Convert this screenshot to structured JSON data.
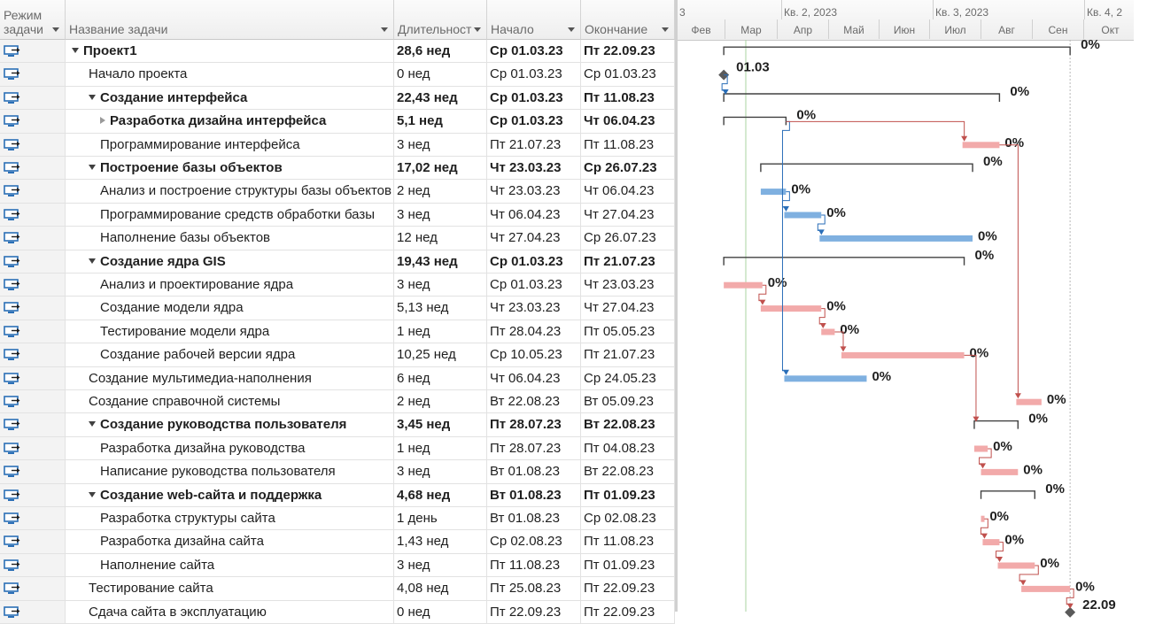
{
  "columns": {
    "mode_line1": "Режим",
    "mode_line2": "задачи",
    "name": "Название задачи",
    "duration": "Длительност",
    "start": "Начало",
    "finish": "Окончание"
  },
  "timescale": {
    "top_tiers": [
      "3",
      "Кв. 2, 2023",
      "Кв. 3, 2023",
      "Кв. 4, 2"
    ],
    "months": [
      "Фев",
      "Мар",
      "Апр",
      "Май",
      "Июн",
      "Июл",
      "Авг",
      "Сен",
      "Окт"
    ]
  },
  "tasks": [
    {
      "name": "Проект1",
      "duration": "28,6 нед",
      "start": "Ср 01.03.23",
      "finish": "Пт 22.09.23",
      "level": 0,
      "summary": true,
      "percent": "0%"
    },
    {
      "name": "Начало проекта",
      "duration": "0 нед",
      "start": "Ср 01.03.23",
      "finish": "Ср 01.03.23",
      "level": 1,
      "summary": false,
      "milestone": true,
      "milestone_label": "01.03"
    },
    {
      "name": "Создание интерфейса",
      "duration": "22,43 нед",
      "start": "Ср 01.03.23",
      "finish": "Пт 11.08.23",
      "level": 1,
      "summary": true,
      "percent": "0%"
    },
    {
      "name": "Разработка дизайна интерфейса",
      "duration": "5,1 нед",
      "start": "Ср 01.03.23",
      "finish": "Чт 06.04.23",
      "level": 2,
      "summary": true,
      "collapsed": true,
      "percent": "0%"
    },
    {
      "name": "Программирование интерфейса",
      "duration": "3 нед",
      "start": "Пт 21.07.23",
      "finish": "Пт 11.08.23",
      "level": 2,
      "summary": false,
      "percent": "0%"
    },
    {
      "name": "Построение базы объектов",
      "duration": "17,02 нед",
      "start": "Чт 23.03.23",
      "finish": "Ср 26.07.23",
      "level": 1,
      "summary": true,
      "percent": "0%"
    },
    {
      "name": "Анализ и построение структуры базы объектов",
      "duration": "2 нед",
      "start": "Чт 23.03.23",
      "finish": "Чт 06.04.23",
      "level": 2,
      "summary": false,
      "percent": "0%"
    },
    {
      "name": "Программирование средств обработки базы",
      "duration": "3 нед",
      "start": "Чт 06.04.23",
      "finish": "Чт 27.04.23",
      "level": 2,
      "summary": false,
      "percent": "0%"
    },
    {
      "name": "Наполнение базы объектов",
      "duration": "12 нед",
      "start": "Чт 27.04.23",
      "finish": "Ср 26.07.23",
      "level": 2,
      "summary": false,
      "percent": "0%"
    },
    {
      "name": "Создание ядра GIS",
      "duration": "19,43 нед",
      "start": "Ср 01.03.23",
      "finish": "Пт 21.07.23",
      "level": 1,
      "summary": true,
      "percent": "0%"
    },
    {
      "name": "Анализ и проектирование ядра",
      "duration": "3 нед",
      "start": "Ср 01.03.23",
      "finish": "Чт 23.03.23",
      "level": 2,
      "summary": false,
      "percent": "0%"
    },
    {
      "name": "Создание модели ядра",
      "duration": "5,13 нед",
      "start": "Чт 23.03.23",
      "finish": "Чт 27.04.23",
      "level": 2,
      "summary": false,
      "percent": "0%"
    },
    {
      "name": "Тестирование модели ядра",
      "duration": "1 нед",
      "start": "Пт 28.04.23",
      "finish": "Пт 05.05.23",
      "level": 2,
      "summary": false,
      "percent": "0%"
    },
    {
      "name": "Создание рабочей версии ядра",
      "duration": "10,25 нед",
      "start": "Ср 10.05.23",
      "finish": "Пт 21.07.23",
      "level": 2,
      "summary": false,
      "percent": "0%"
    },
    {
      "name": "Создание мультимедиа-наполнения",
      "duration": "6 нед",
      "start": "Чт 06.04.23",
      "finish": "Ср 24.05.23",
      "level": 1,
      "summary": false,
      "percent": "0%"
    },
    {
      "name": "Создание справочной системы",
      "duration": "2 нед",
      "start": "Вт 22.08.23",
      "finish": "Вт 05.09.23",
      "level": 1,
      "summary": false,
      "percent": "0%"
    },
    {
      "name": "Создание руководства пользователя",
      "duration": "3,45 нед",
      "start": "Пт 28.07.23",
      "finish": "Вт 22.08.23",
      "level": 1,
      "summary": true,
      "percent": "0%"
    },
    {
      "name": "Разработка дизайна руководства",
      "duration": "1 нед",
      "start": "Пт 28.07.23",
      "finish": "Пт 04.08.23",
      "level": 2,
      "summary": false,
      "percent": "0%"
    },
    {
      "name": "Написание руководства пользователя",
      "duration": "3 нед",
      "start": "Вт 01.08.23",
      "finish": "Вт 22.08.23",
      "level": 2,
      "summary": false,
      "percent": "0%"
    },
    {
      "name": "Создание web-сайта и поддержка",
      "duration": "4,68 нед",
      "start": "Вт 01.08.23",
      "finish": "Пт 01.09.23",
      "level": 1,
      "summary": true,
      "percent": "0%"
    },
    {
      "name": "Разработка структуры сайта",
      "duration": "1 день",
      "start": "Вт 01.08.23",
      "finish": "Ср 02.08.23",
      "level": 2,
      "summary": false,
      "percent": "0%"
    },
    {
      "name": "Разработка дизайна сайта",
      "duration": "1,43 нед",
      "start": "Ср 02.08.23",
      "finish": "Пт 11.08.23",
      "level": 2,
      "summary": false,
      "percent": "0%"
    },
    {
      "name": "Наполнение сайта",
      "duration": "3 нед",
      "start": "Пт 11.08.23",
      "finish": "Пт 01.09.23",
      "level": 2,
      "summary": false,
      "percent": "0%"
    },
    {
      "name": "Тестирование сайта",
      "duration": "4,08 нед",
      "start": "Пт 25.08.23",
      "finish": "Пт 22.09.23",
      "level": 1,
      "summary": false,
      "percent": "0%"
    },
    {
      "name": "Сдача сайта в эксплуатацию",
      "duration": "0 нед",
      "start": "Пт 22.09.23",
      "finish": "Пт 22.09.23",
      "level": 1,
      "summary": false,
      "milestone": true,
      "milestone_label": "22.09"
    }
  ],
  "colors": {
    "critical_bar": "#f2aaaa",
    "normal_bar": "#7fb0e0",
    "critical_link": "#c0504d",
    "normal_link": "#2a6eb8",
    "summary_line": "#404040",
    "mode_icon": "#2b6fb6"
  }
}
